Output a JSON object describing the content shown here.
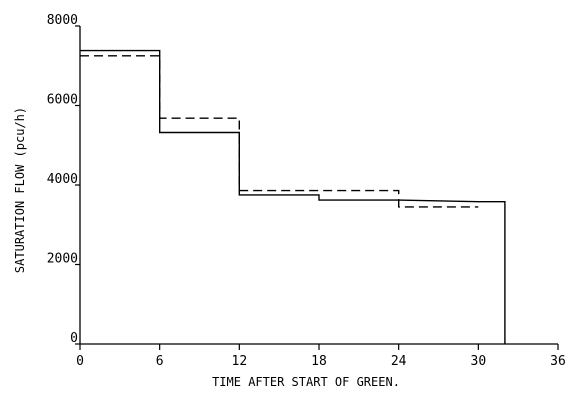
{
  "chart_data": {
    "type": "line",
    "title": "",
    "xlabel": "TIME AFTER START OF GREEN.",
    "ylabel": "SATURATION FLOW (pcu/h)",
    "xlim": [
      0,
      36
    ],
    "ylim": [
      0,
      8000
    ],
    "x_ticks": [
      0,
      6,
      12,
      18,
      24,
      30,
      36
    ],
    "y_ticks": [
      0,
      2000,
      4000,
      6000,
      8000
    ],
    "x_tick_labels": [
      "0",
      "6",
      "12",
      "18",
      "24",
      "30",
      "36"
    ],
    "y_tick_labels": [
      "0",
      "2000",
      "4000",
      "6000",
      "8000"
    ],
    "grid": false,
    "legend": "none",
    "series": [
      {
        "style": "solid",
        "x": [
          0,
          6,
          6,
          12,
          12,
          18,
          18,
          24,
          24,
          30,
          32,
          32
        ],
        "y": [
          7380,
          7380,
          5320,
          5320,
          3750,
          3750,
          3620,
          3620,
          3620,
          3580,
          3580,
          0
        ]
      },
      {
        "style": "dashed",
        "x": [
          0,
          6,
          6,
          12,
          12,
          24,
          24,
          30
        ],
        "y": [
          7250,
          7250,
          5680,
          5680,
          3860,
          3860,
          3450,
          3450
        ]
      }
    ],
    "colors": {
      "line": "#000000",
      "axis": "#000000"
    }
  }
}
